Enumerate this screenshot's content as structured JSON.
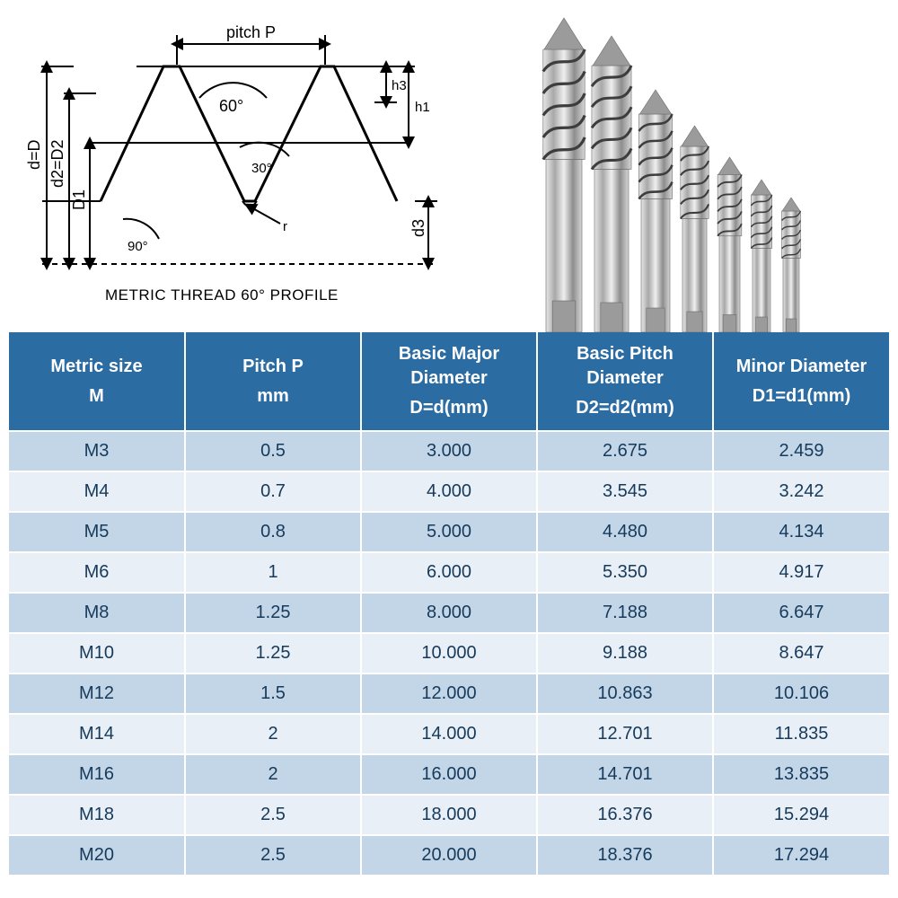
{
  "diagram": {
    "caption": "METRIC THREAD   60° PROFILE",
    "labels": {
      "pitch": "pitch  P",
      "angle60": "60°",
      "angle30": "30°",
      "angle90": "90°",
      "d_equals_D": "d=D",
      "d2_equals_D2": "d2=D2",
      "D1": "D1",
      "d3": "d3",
      "h1": "h1",
      "h3": "h3",
      "r": "r"
    },
    "style": {
      "stroke": "#000000",
      "stroke_width": 2,
      "dash": "6 5",
      "font_size_label": 18,
      "font_size_caption": 17
    }
  },
  "photo": {
    "description": "seven spiral-flute HSS machine taps arranged largest to smallest",
    "tap_count": 7,
    "tap_heights": [
      350,
      330,
      270,
      230,
      195,
      170,
      150
    ],
    "tap_widths": [
      40,
      38,
      32,
      27,
      23,
      20,
      18
    ],
    "metal_light": "#cfcfcf",
    "metal_mid": "#9b9b9b",
    "metal_dark": "#6a6a6a",
    "flute_dark": "#3d3d3d"
  },
  "table": {
    "header_bg": "#2b6ca3",
    "header_fg": "#ffffff",
    "row_odd_bg": "#c2d6e8",
    "row_even_bg": "#e8eff6",
    "cell_fg": "#173a5a",
    "border_color": "#ffffff",
    "header_fontsize": 20,
    "cell_fontsize": 20,
    "columns": [
      {
        "title": "Metric size",
        "sub": "M"
      },
      {
        "title": "Pitch P",
        "sub": "mm"
      },
      {
        "title": "Basic Major Diameter",
        "sub": "D=d(mm)"
      },
      {
        "title": "Basic Pitch Diameter",
        "sub": "D2=d2(mm)"
      },
      {
        "title": "Minor Diameter",
        "sub": "D1=d1(mm)"
      }
    ],
    "rows": [
      [
        "M3",
        "0.5",
        "3.000",
        "2.675",
        "2.459"
      ],
      [
        "M4",
        "0.7",
        "4.000",
        "3.545",
        "3.242"
      ],
      [
        "M5",
        "0.8",
        "5.000",
        "4.480",
        "4.134"
      ],
      [
        "M6",
        "1",
        "6.000",
        "5.350",
        "4.917"
      ],
      [
        "M8",
        "1.25",
        "8.000",
        "7.188",
        "6.647"
      ],
      [
        "M10",
        "1.25",
        "10.000",
        "9.188",
        "8.647"
      ],
      [
        "M12",
        "1.5",
        "12.000",
        "10.863",
        "10.106"
      ],
      [
        "M14",
        "2",
        "14.000",
        "12.701",
        "11.835"
      ],
      [
        "M16",
        "2",
        "16.000",
        "14.701",
        "13.835"
      ],
      [
        "M18",
        "2.5",
        "18.000",
        "16.376",
        "15.294"
      ],
      [
        "M20",
        "2.5",
        "20.000",
        "18.376",
        "17.294"
      ]
    ]
  }
}
